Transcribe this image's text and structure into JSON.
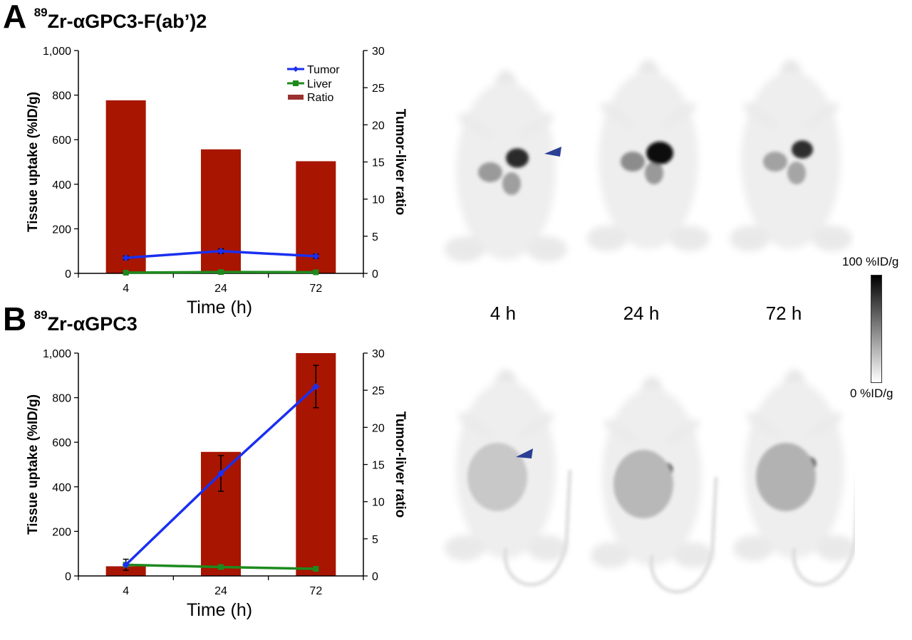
{
  "panel_a": {
    "letter": "A",
    "isotope": "89",
    "title": "Zr-αGPC3-F(ab’)2"
  },
  "panel_b": {
    "letter": "B",
    "isotope": "89",
    "title": "Zr-αGPC3"
  },
  "pet_images": {
    "time_labels": [
      "4 h",
      "24 h",
      "72 h"
    ]
  },
  "colorbar": {
    "max_label": "100 %ID/g",
    "min_label": "0 %ID/g"
  },
  "colors": {
    "tumor": "#1a2ff0",
    "liver": "#1e8a1e",
    "ratio": "#a81500",
    "arrow": "#2c3f95"
  },
  "chart_data": [
    {
      "type": "bar",
      "panel": "A",
      "categories": [
        "4",
        "24",
        "72"
      ],
      "xlabel": "Time (h)",
      "ylabel": "Tissue uptake (%ID/g)",
      "y2label": "Tumor-liver ratio",
      "ylim": [
        0,
        1000
      ],
      "y2lim": [
        0,
        30
      ],
      "yticks": [
        "0",
        "200",
        "400",
        "600",
        "800",
        "1,000"
      ],
      "y2ticks": [
        "0",
        "5",
        "10",
        "15",
        "20",
        "25",
        "30"
      ],
      "legend": {
        "placement": "top-right",
        "entries": [
          "Tumor",
          "Liver",
          "Ratio"
        ]
      },
      "series": [
        {
          "name": "Ratio",
          "axis": "right",
          "kind": "bar",
          "values": [
            23.3,
            16.7,
            15.1
          ]
        },
        {
          "name": "Tumor",
          "axis": "left",
          "kind": "line",
          "values": [
            70,
            100,
            77
          ],
          "errors": [
            8,
            10,
            9
          ]
        },
        {
          "name": "Liver",
          "axis": "left",
          "kind": "line",
          "values": [
            3,
            6,
            5
          ],
          "errors": [
            1,
            1,
            1
          ]
        }
      ]
    },
    {
      "type": "bar",
      "panel": "B",
      "categories": [
        "4",
        "24",
        "72"
      ],
      "xlabel": "Time (h)",
      "ylabel": "Tissue uptake (%ID/g)",
      "y2label": "Tumor-liver ratio",
      "ylim": [
        0,
        1000
      ],
      "y2lim": [
        0,
        30
      ],
      "yticks": [
        "0",
        "200",
        "400",
        "600",
        "800",
        "1,000"
      ],
      "y2ticks": [
        "0",
        "5",
        "10",
        "15",
        "20",
        "25",
        "30"
      ],
      "series": [
        {
          "name": "Ratio",
          "axis": "right",
          "kind": "bar",
          "values": [
            1.3,
            16.7,
            30
          ]
        },
        {
          "name": "Tumor",
          "axis": "left",
          "kind": "line",
          "values": [
            50,
            460,
            850
          ],
          "errors": [
            25,
            80,
            95
          ]
        },
        {
          "name": "Liver",
          "axis": "left",
          "kind": "line",
          "values": [
            50,
            40,
            32
          ],
          "errors": [
            10,
            10,
            10
          ]
        }
      ]
    }
  ]
}
